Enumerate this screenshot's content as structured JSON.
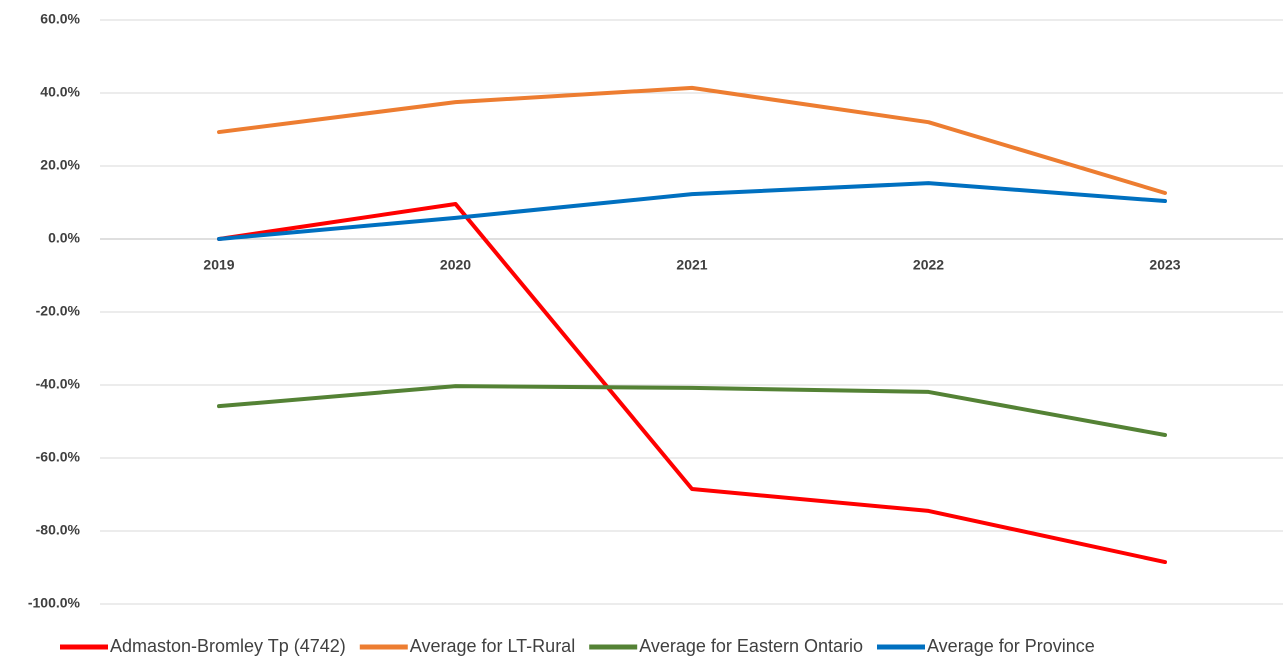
{
  "chart_data": {
    "type": "line",
    "categories": [
      "2019",
      "2020",
      "2021",
      "2022",
      "2023"
    ],
    "series": [
      {
        "name": "Admaston-Bromley Tp (4742)",
        "color": "#ff0000",
        "values": [
          0,
          9.6,
          -68.5,
          -74.5,
          -88.5
        ]
      },
      {
        "name": "Average for LT-Rural",
        "color": "#ed7d31",
        "values": [
          29.3,
          37.5,
          41.4,
          32,
          12.6
        ]
      },
      {
        "name": "Average for Eastern Ontario",
        "color": "#548235",
        "values": [
          -45.8,
          -40.3,
          -40.8,
          -41.9,
          -53.7
        ]
      },
      {
        "name": "Average for Province",
        "color": "#0070c0",
        "values": [
          0,
          5.8,
          12.3,
          15.3,
          10.4
        ]
      }
    ],
    "ylim": [
      -100,
      60
    ],
    "yticks": [
      {
        "value": -100,
        "label": "-100.0%"
      },
      {
        "value": -80,
        "label": "-80.0%"
      },
      {
        "value": -60,
        "label": "-60.0%"
      },
      {
        "value": -40,
        "label": "-40.0%"
      },
      {
        "value": -20,
        "label": "-20.0%"
      },
      {
        "value": 0,
        "label": "0.0%"
      },
      {
        "value": 20,
        "label": "20.0%"
      },
      {
        "value": 40,
        "label": "40.0%"
      },
      {
        "value": 60,
        "label": "60.0%"
      }
    ],
    "grid": true,
    "legend": "bottom"
  }
}
